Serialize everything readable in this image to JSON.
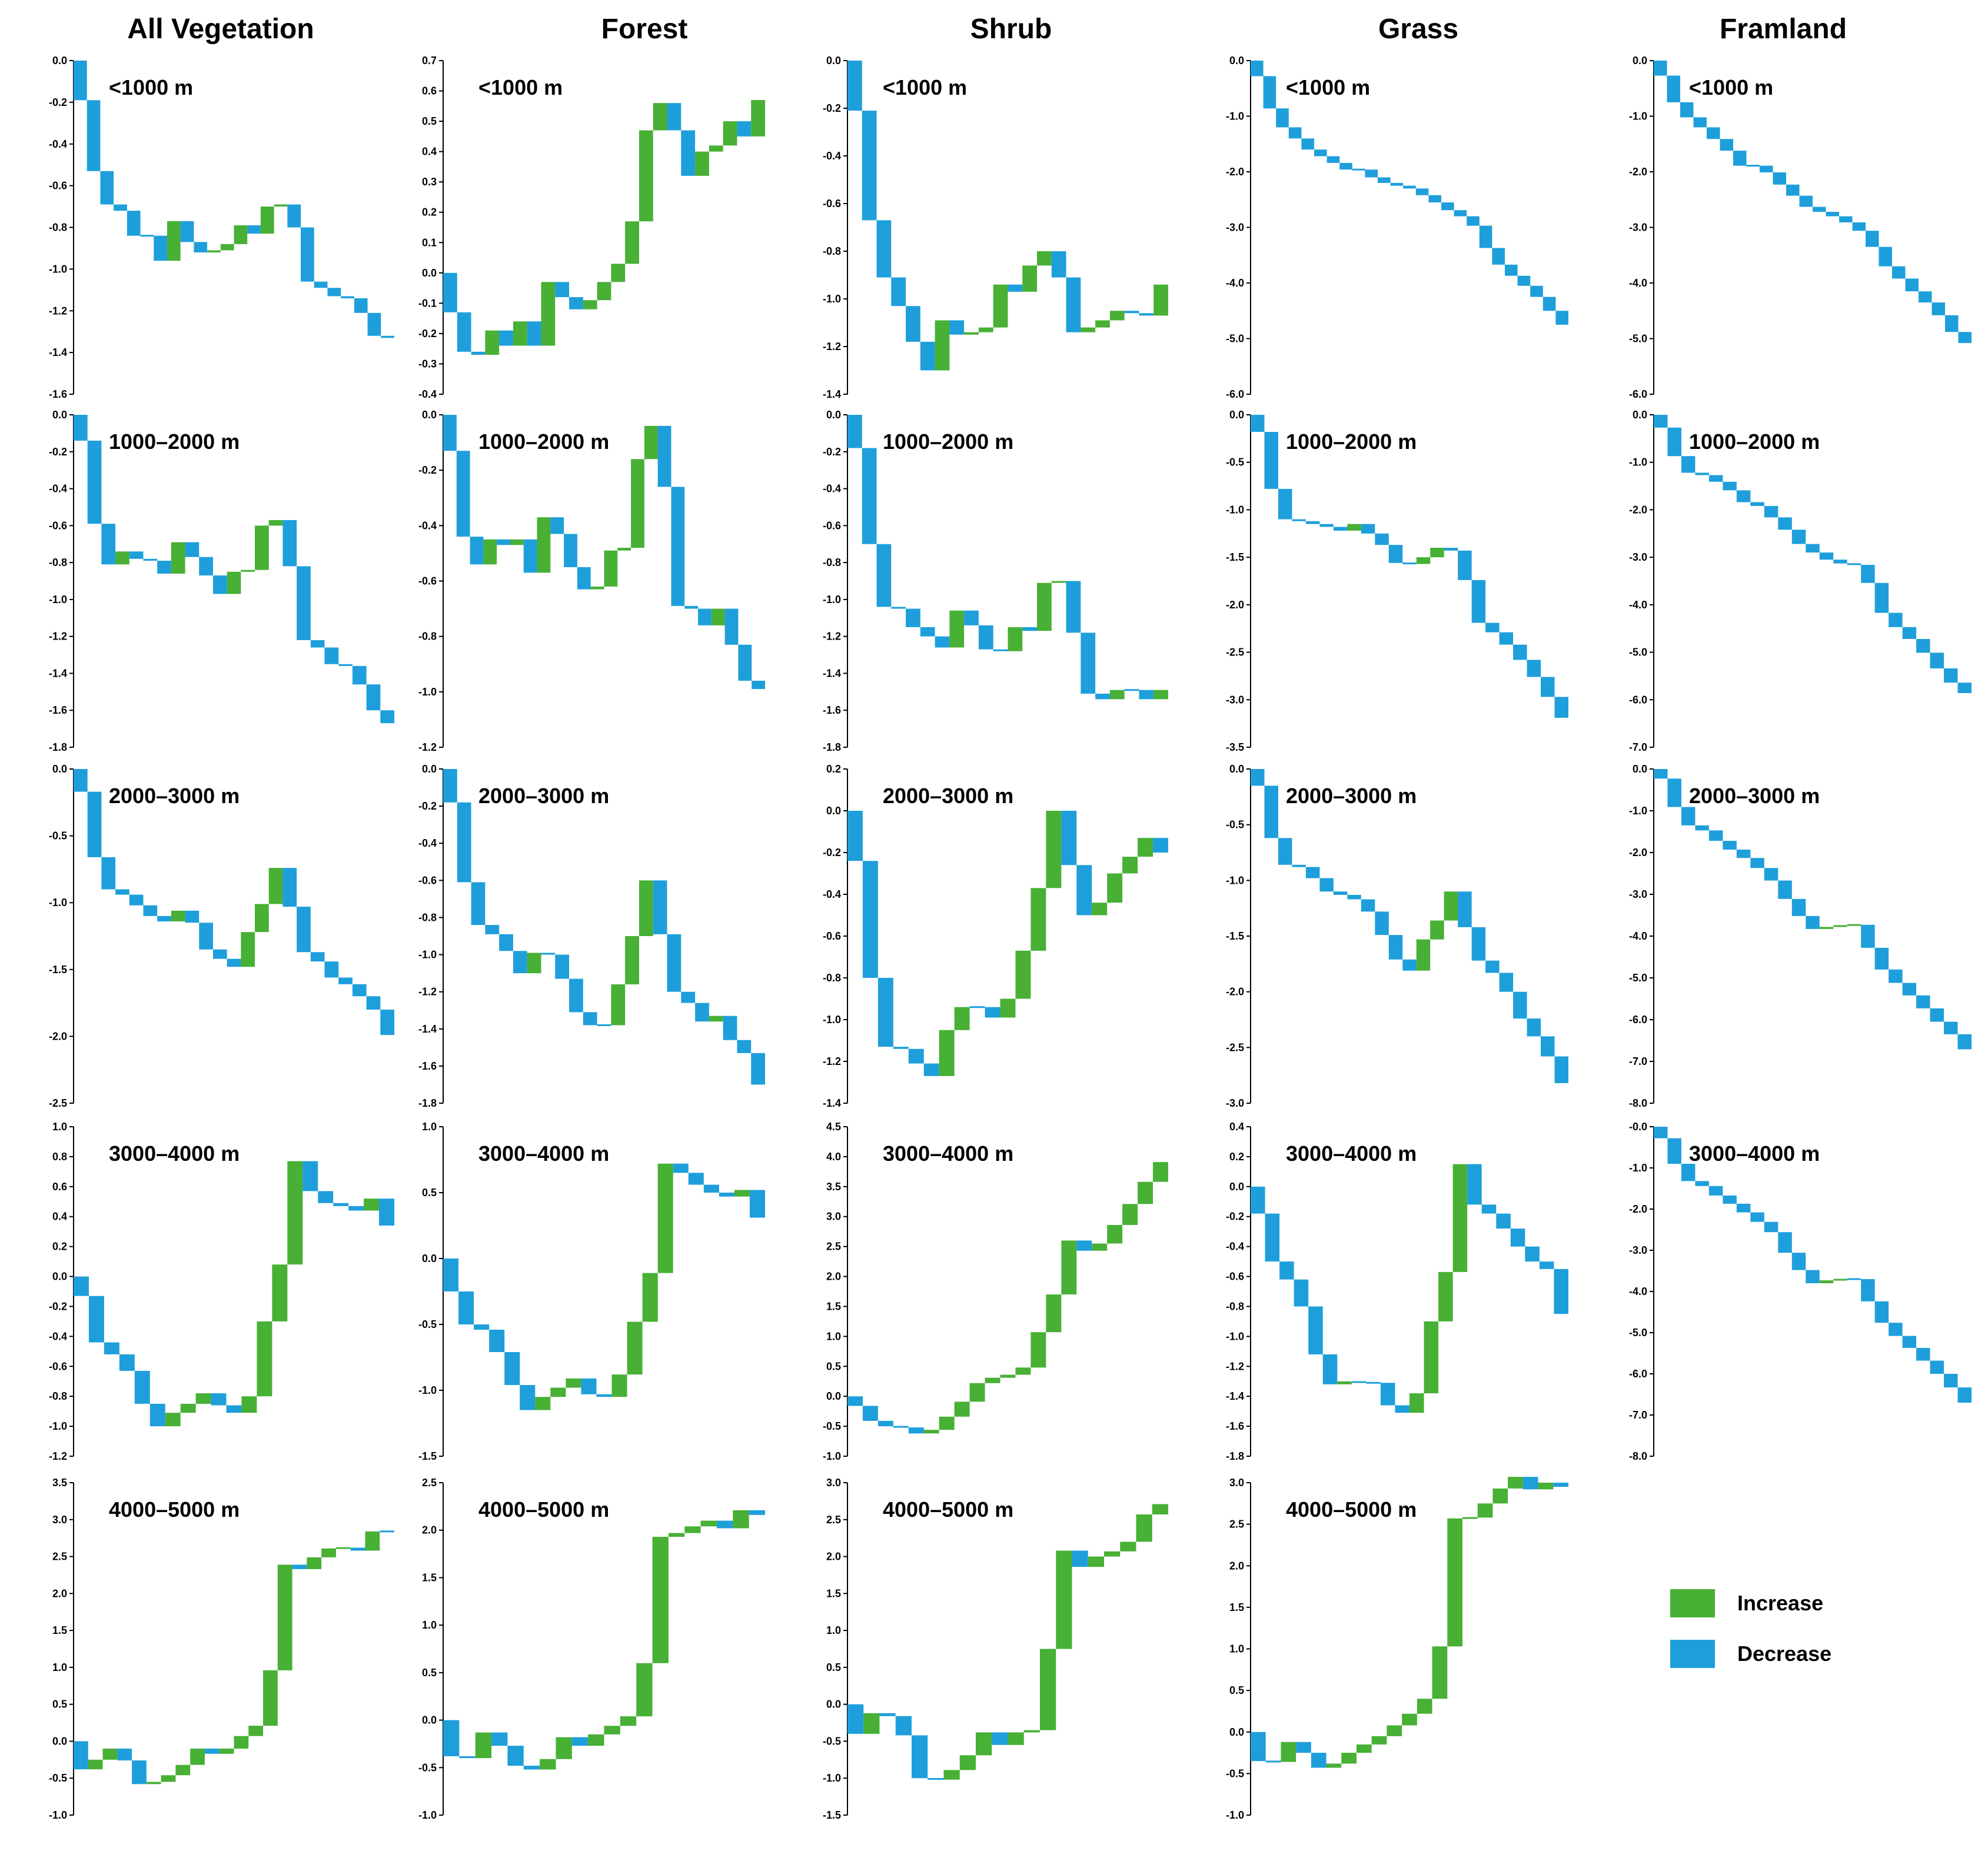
{
  "colors": {
    "increase": "#47B035",
    "decrease": "#1E9FDB"
  },
  "legend": {
    "increase_label": "Increase",
    "decrease_label": "Decrease"
  },
  "columns": [
    "All Vegetation",
    "Forest",
    "Shrub",
    "Grass",
    "Framland"
  ],
  "chart_data": [
    {
      "type": "bar",
      "chart": "waterfall",
      "column": "All Vegetation",
      "label": "<1000 m",
      "ylim": [
        -1.6,
        0.0
      ],
      "yticks": [
        "0.0",
        "-0.2",
        "-0.4",
        "-0.6",
        "-0.8",
        "-1.0",
        "-1.2",
        "-1.4",
        "-1.6"
      ],
      "cumulative": [
        -0.19,
        -0.53,
        -0.69,
        -0.72,
        -0.84,
        -0.84,
        -0.96,
        -0.77,
        -0.87,
        -0.92,
        -0.91,
        -0.88,
        -0.79,
        -0.83,
        -0.7,
        -0.69,
        -0.8,
        -1.06,
        -1.09,
        -1.13,
        -1.14,
        -1.21,
        -1.32,
        -1.33
      ]
    },
    {
      "type": "bar",
      "chart": "waterfall",
      "column": "Forest",
      "label": "<1000 m",
      "ylim": [
        -0.4,
        0.7
      ],
      "yticks": [
        "0.7",
        "0.6",
        "0.5",
        "0.4",
        "0.3",
        "0.2",
        "0.1",
        "0.0",
        "-0.1",
        "-0.2",
        "-0.3",
        "-0.4"
      ],
      "cumulative": [
        -0.13,
        -0.26,
        -0.27,
        -0.19,
        -0.24,
        -0.16,
        -0.24,
        -0.03,
        -0.08,
        -0.12,
        -0.09,
        -0.03,
        0.03,
        0.17,
        0.47,
        0.56,
        0.47,
        0.32,
        0.4,
        0.42,
        0.5,
        0.45,
        0.57
      ]
    },
    {
      "type": "bar",
      "chart": "waterfall",
      "column": "Shrub",
      "label": "<1000 m",
      "ylim": [
        -1.4,
        0.0
      ],
      "yticks": [
        "0.0",
        "-0.2",
        "-0.4",
        "-0.6",
        "-0.8",
        "-1.0",
        "-1.2",
        "-1.4"
      ],
      "cumulative": [
        -0.21,
        -0.67,
        -0.91,
        -1.03,
        -1.18,
        -1.3,
        -1.09,
        -1.15,
        -1.14,
        -1.12,
        -0.94,
        -0.97,
        -0.86,
        -0.8,
        -0.91,
        -1.14,
        -1.12,
        -1.09,
        -1.05,
        -1.06,
        -1.07,
        -0.94
      ]
    },
    {
      "type": "bar",
      "chart": "waterfall",
      "column": "Grass",
      "label": "<1000 m",
      "ylim": [
        -6.0,
        0.0
      ],
      "yticks": [
        "0.0",
        "-1.0",
        "-2.0",
        "-3.0",
        "-4.0",
        "-5.0",
        "-6.0"
      ],
      "cumulative": [
        -0.28,
        -0.86,
        -1.2,
        -1.4,
        -1.6,
        -1.72,
        -1.84,
        -1.96,
        -1.96,
        -2.1,
        -2.2,
        -2.25,
        -2.3,
        -2.42,
        -2.55,
        -2.69,
        -2.8,
        -2.97,
        -3.37,
        -3.67,
        -3.87,
        -4.05,
        -4.25,
        -4.5,
        -4.75
      ]
    },
    {
      "type": "bar",
      "chart": "waterfall",
      "column": "Framland",
      "label": "<1000 m",
      "ylim": [
        -6.0,
        0.0
      ],
      "yticks": [
        "0.0",
        "-1.0",
        "-2.0",
        "-3.0",
        "-4.0",
        "-5.0",
        "-6.0"
      ],
      "cumulative": [
        -0.27,
        -0.75,
        -1.02,
        -1.2,
        -1.41,
        -1.62,
        -1.89,
        -1.89,
        -2.01,
        -2.23,
        -2.43,
        -2.63,
        -2.72,
        -2.8,
        -2.91,
        -3.06,
        -3.35,
        -3.7,
        -3.92,
        -4.15,
        -4.35,
        -4.58,
        -4.88,
        -5.08
      ]
    },
    {
      "type": "bar",
      "chart": "waterfall",
      "column": "All Vegetation",
      "label": "1000–2000 m",
      "ylim": [
        -1.8,
        0.0
      ],
      "yticks": [
        "0.0",
        "-0.2",
        "-0.4",
        "-0.6",
        "-0.8",
        "-1.0",
        "-1.2",
        "-1.4",
        "-1.6",
        "-1.8"
      ],
      "cumulative": [
        -0.14,
        -0.59,
        -0.81,
        -0.74,
        -0.78,
        -0.79,
        -0.86,
        -0.69,
        -0.77,
        -0.87,
        -0.97,
        -0.85,
        -0.84,
        -0.6,
        -0.57,
        -0.82,
        -1.22,
        -1.26,
        -1.35,
        -1.36,
        -1.46,
        -1.6,
        -1.67
      ]
    },
    {
      "type": "bar",
      "chart": "waterfall",
      "column": "Forest",
      "label": "1000–2000 m",
      "ylim": [
        -1.2,
        0.0
      ],
      "yticks": [
        "0.0",
        "-0.2",
        "-0.4",
        "-0.6",
        "-0.8",
        "-1.0",
        "-1.2"
      ],
      "cumulative": [
        -0.13,
        -0.44,
        -0.54,
        -0.45,
        -0.47,
        -0.45,
        -0.57,
        -0.37,
        -0.43,
        -0.55,
        -0.63,
        -0.62,
        -0.49,
        -0.48,
        -0.16,
        -0.04,
        -0.26,
        -0.69,
        -0.7,
        -0.76,
        -0.7,
        -0.83,
        -0.96,
        -0.99
      ]
    },
    {
      "type": "bar",
      "chart": "waterfall",
      "column": "Shrub",
      "label": "1000–2000 m",
      "ylim": [
        -1.8,
        0.0
      ],
      "yticks": [
        "0.0",
        "-0.2",
        "-0.4",
        "-0.6",
        "-0.8",
        "-1.0",
        "-1.2",
        "-1.4",
        "-1.6",
        "-1.8"
      ],
      "cumulative": [
        -0.18,
        -0.7,
        -1.04,
        -1.05,
        -1.15,
        -1.2,
        -1.26,
        -1.06,
        -1.14,
        -1.27,
        -1.28,
        -1.15,
        -1.17,
        -0.91,
        -0.9,
        -1.18,
        -1.51,
        -1.54,
        -1.49,
        -1.49,
        -1.54,
        -1.49
      ]
    },
    {
      "type": "bar",
      "chart": "waterfall",
      "column": "Grass",
      "label": "1000–2000 m",
      "ylim": [
        -3.5,
        0.0
      ],
      "yticks": [
        "0.0",
        "-0.5",
        "-1.0",
        "-1.5",
        "-2.0",
        "-2.5",
        "-3.0",
        "-3.5"
      ],
      "cumulative": [
        -0.18,
        -0.78,
        -1.1,
        -1.12,
        -1.15,
        -1.18,
        -1.22,
        -1.15,
        -1.25,
        -1.37,
        -1.56,
        -1.57,
        -1.5,
        -1.4,
        -1.43,
        -1.74,
        -2.19,
        -2.29,
        -2.42,
        -2.58,
        -2.76,
        -2.97,
        -3.19
      ]
    },
    {
      "type": "bar",
      "chart": "waterfall",
      "column": "Framland",
      "label": "1000–2000 m",
      "ylim": [
        -7.0,
        0.0
      ],
      "yticks": [
        "0.0",
        "-1.0",
        "-2.0",
        "-3.0",
        "-4.0",
        "-5.0",
        "-6.0",
        "-7.0"
      ],
      "cumulative": [
        -0.27,
        -0.87,
        -1.22,
        -1.27,
        -1.41,
        -1.59,
        -1.84,
        -1.92,
        -2.16,
        -2.42,
        -2.72,
        -2.9,
        -3.05,
        -3.13,
        -3.16,
        -3.54,
        -4.17,
        -4.47,
        -4.72,
        -5.01,
        -5.34,
        -5.64,
        -5.86
      ]
    },
    {
      "type": "bar",
      "chart": "waterfall",
      "column": "All Vegetation",
      "label": "2000–3000 m",
      "ylim": [
        -2.5,
        0.0
      ],
      "yticks": [
        "0.0",
        "-0.5",
        "-1.0",
        "-1.5",
        "-2.0",
        "-2.5"
      ],
      "cumulative": [
        -0.17,
        -0.66,
        -0.9,
        -0.94,
        -1.02,
        -1.1,
        -1.14,
        -1.06,
        -1.15,
        -1.35,
        -1.42,
        -1.48,
        -1.22,
        -1.01,
        -0.74,
        -1.03,
        -1.37,
        -1.44,
        -1.56,
        -1.61,
        -1.7,
        -1.8,
        -1.99
      ]
    },
    {
      "type": "bar",
      "chart": "waterfall",
      "column": "Forest",
      "label": "2000–3000 m",
      "ylim": [
        -1.8,
        0.0
      ],
      "yticks": [
        "0.0",
        "-0.2",
        "-0.4",
        "-0.6",
        "-0.8",
        "-1.0",
        "-1.2",
        "-1.4",
        "-1.6",
        "-1.8"
      ],
      "cumulative": [
        -0.18,
        -0.61,
        -0.84,
        -0.89,
        -0.98,
        -1.1,
        -0.99,
        -1.0,
        -1.13,
        -1.31,
        -1.38,
        -1.38,
        -1.16,
        -0.9,
        -0.6,
        -0.89,
        -1.2,
        -1.26,
        -1.36,
        -1.33,
        -1.46,
        -1.53,
        -1.7
      ]
    },
    {
      "type": "bar",
      "chart": "waterfall",
      "column": "Shrub",
      "label": "2000–3000 m",
      "ylim": [
        -1.4,
        0.2
      ],
      "yticks": [
        "0.2",
        "0.0",
        "-0.2",
        "-0.4",
        "-0.6",
        "-0.8",
        "-1.0",
        "-1.2",
        "-1.4"
      ],
      "cumulative": [
        -0.24,
        -0.8,
        -1.13,
        -1.14,
        -1.21,
        -1.27,
        -1.05,
        -0.94,
        -0.94,
        -0.99,
        -0.9,
        -0.67,
        -0.37,
        0.0,
        -0.26,
        -0.5,
        -0.44,
        -0.3,
        -0.22,
        -0.13,
        -0.2
      ]
    },
    {
      "type": "bar",
      "chart": "waterfall",
      "column": "Grass",
      "label": "2000–3000 m",
      "ylim": [
        -3.0,
        0.0
      ],
      "yticks": [
        "0.0",
        "-0.5",
        "-1.0",
        "-1.5",
        "-2.0",
        "-2.5",
        "-3.0"
      ],
      "cumulative": [
        -0.15,
        -0.62,
        -0.86,
        -0.88,
        -0.98,
        -1.1,
        -1.13,
        -1.17,
        -1.28,
        -1.49,
        -1.71,
        -1.81,
        -1.53,
        -1.36,
        -1.1,
        -1.42,
        -1.72,
        -1.83,
        -2.0,
        -2.24,
        -2.4,
        -2.58,
        -2.82
      ]
    },
    {
      "type": "bar",
      "chart": "waterfall",
      "column": "Framland",
      "label": "2000–3000 m",
      "ylim": [
        -8.0,
        0.0
      ],
      "yticks": [
        "0.0",
        "-1.0",
        "-2.0",
        "-3.0",
        "-4.0",
        "-5.0",
        "-6.0",
        "-7.0",
        "-8.0"
      ],
      "cumulative": [
        -0.23,
        -0.91,
        -1.35,
        -1.47,
        -1.72,
        -1.93,
        -2.13,
        -2.37,
        -2.67,
        -3.11,
        -3.52,
        -3.83,
        -3.78,
        -3.74,
        -3.73,
        -4.28,
        -4.8,
        -5.12,
        -5.42,
        -5.73,
        -6.05,
        -6.35,
        -6.71
      ]
    },
    {
      "type": "bar",
      "chart": "waterfall",
      "column": "All Vegetation",
      "label": "3000–4000 m",
      "ylim": [
        -1.2,
        1.0
      ],
      "yticks": [
        "1.0",
        "0.8",
        "0.6",
        "0.4",
        "0.2",
        "0.0",
        "-0.2",
        "-0.4",
        "-0.6",
        "-0.8",
        "-1.0",
        "-1.2"
      ],
      "cumulative": [
        -0.13,
        -0.44,
        -0.52,
        -0.63,
        -0.85,
        -1.0,
        -0.91,
        -0.85,
        -0.78,
        -0.86,
        -0.91,
        -0.8,
        -0.3,
        0.08,
        0.77,
        0.57,
        0.49,
        0.47,
        0.44,
        0.52,
        0.34
      ]
    },
    {
      "type": "bar",
      "chart": "waterfall",
      "column": "Forest",
      "label": "3000–4000 m",
      "ylim": [
        -1.5,
        1.0
      ],
      "yticks": [
        "1.0",
        "0.5",
        "0.0",
        "-0.5",
        "-1.0",
        "-1.5"
      ],
      "cumulative": [
        -0.25,
        -0.5,
        -0.54,
        -0.71,
        -0.96,
        -1.15,
        -1.05,
        -0.98,
        -0.91,
        -1.03,
        -1.05,
        -0.88,
        -0.48,
        -0.11,
        0.72,
        0.65,
        0.56,
        0.5,
        0.47,
        0.52,
        0.31
      ]
    },
    {
      "type": "bar",
      "chart": "waterfall",
      "column": "Shrub",
      "label": "3000–4000 m",
      "ylim": [
        -1.0,
        4.5
      ],
      "yticks": [
        "4.5",
        "4.0",
        "3.5",
        "3.0",
        "2.5",
        "2.0",
        "1.5",
        "1.0",
        "0.5",
        "0.0",
        "-0.5",
        "-1.0"
      ],
      "cumulative": [
        -0.16,
        -0.41,
        -0.5,
        -0.52,
        -0.62,
        -0.56,
        -0.34,
        -0.09,
        0.22,
        0.31,
        0.36,
        0.48,
        1.07,
        1.7,
        2.6,
        2.43,
        2.55,
        2.86,
        3.21,
        3.58,
        3.91
      ]
    },
    {
      "type": "bar",
      "chart": "waterfall",
      "column": "Grass",
      "label": "3000–4000 m",
      "ylim": [
        -1.8,
        0.4
      ],
      "yticks": [
        "0.4",
        "0.2",
        "0.0",
        "-0.2",
        "-0.4",
        "-0.6",
        "-0.8",
        "-1.0",
        "-1.2",
        "-1.4",
        "-1.6",
        "-1.8"
      ],
      "cumulative": [
        -0.18,
        -0.5,
        -0.62,
        -0.8,
        -1.12,
        -1.32,
        -1.3,
        -1.31,
        -1.31,
        -1.46,
        -1.51,
        -1.38,
        -0.9,
        -0.57,
        0.15,
        -0.12,
        -0.18,
        -0.28,
        -0.4,
        -0.5,
        -0.55,
        -0.85
      ]
    },
    {
      "type": "bar",
      "chart": "waterfall",
      "column": "Framland",
      "label": "3000–4000 m",
      "ylim": [
        -8.0,
        0.0
      ],
      "yticks": [
        "-0.0",
        "-1.0",
        "-2.0",
        "-3.0",
        "-4.0",
        "-5.0",
        "-6.0",
        "-7.0",
        "-8.0"
      ],
      "cumulative": [
        -0.28,
        -0.9,
        -1.32,
        -1.44,
        -1.67,
        -1.87,
        -2.08,
        -2.31,
        -2.56,
        -3.06,
        -3.48,
        -3.8,
        -3.73,
        -3.7,
        -3.7,
        -4.24,
        -4.76,
        -5.08,
        -5.37,
        -5.68,
        -6.0,
        -6.33,
        -6.7
      ]
    },
    {
      "type": "bar",
      "chart": "waterfall",
      "column": "All Vegetation",
      "label": "4000–5000 m",
      "ylim": [
        -1.0,
        3.5
      ],
      "yticks": [
        "3.5",
        "3.0",
        "2.5",
        "2.0",
        "1.5",
        "1.0",
        "0.5",
        "0.0",
        "-0.5",
        "-1.0"
      ],
      "cumulative": [
        -0.38,
        -0.25,
        -0.1,
        -0.26,
        -0.58,
        -0.55,
        -0.46,
        -0.32,
        -0.1,
        -0.17,
        -0.1,
        0.07,
        0.21,
        0.96,
        2.39,
        2.33,
        2.49,
        2.61,
        2.62,
        2.58,
        2.84,
        2.84
      ]
    },
    {
      "type": "bar",
      "chart": "waterfall",
      "column": "Forest",
      "label": "4000–5000 m",
      "ylim": [
        -1.0,
        2.5
      ],
      "yticks": [
        "2.5",
        "2.0",
        "1.5",
        "1.0",
        "0.5",
        "0.0",
        "-0.5",
        "-1.0"
      ],
      "cumulative": [
        -0.38,
        -0.4,
        -0.13,
        -0.27,
        -0.48,
        -0.52,
        -0.41,
        -0.18,
        -0.27,
        -0.15,
        -0.06,
        0.04,
        0.6,
        1.93,
        1.97,
        2.04,
        2.1,
        2.02,
        2.21,
        2.16
      ]
    },
    {
      "type": "bar",
      "chart": "waterfall",
      "column": "Shrub",
      "label": "4000–5000 m",
      "ylim": [
        -1.5,
        3.0
      ],
      "yticks": [
        "3.0",
        "2.5",
        "2.0",
        "1.5",
        "1.0",
        "0.5",
        "0.0",
        "-0.5",
        "-1.0",
        "-1.5"
      ],
      "cumulative": [
        -0.4,
        -0.12,
        -0.16,
        -0.42,
        -1.0,
        -1.02,
        -0.89,
        -0.69,
        -0.38,
        -0.55,
        -0.38,
        -0.35,
        0.75,
        2.08,
        1.86,
        2.0,
        2.07,
        2.2,
        2.57,
        2.71
      ]
    },
    {
      "type": "bar",
      "chart": "waterfall",
      "column": "Grass",
      "label": "4000–5000 m",
      "ylim": [
        -1.0,
        3.0
      ],
      "yticks": [
        "3.0",
        "2.5",
        "2.0",
        "1.5",
        "1.0",
        "0.5",
        "0.0",
        "-0.5",
        "-1.0"
      ],
      "cumulative": [
        -0.35,
        -0.36,
        -0.12,
        -0.25,
        -0.43,
        -0.38,
        -0.25,
        -0.15,
        -0.05,
        0.08,
        0.22,
        0.4,
        1.03,
        2.57,
        2.58,
        2.75,
        2.93,
        3.07,
        2.92,
        3.0,
        2.95
      ]
    }
  ]
}
